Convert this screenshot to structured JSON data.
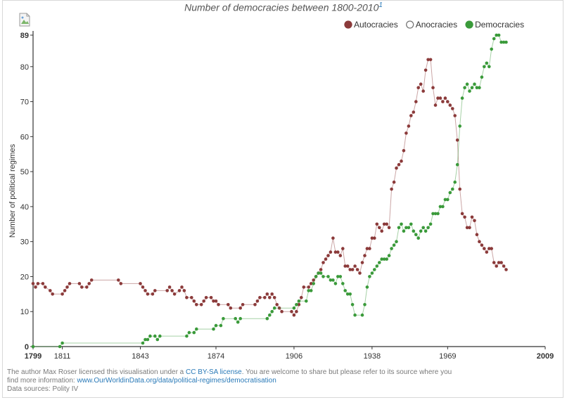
{
  "page": {
    "title": "Number of democracies between 1800-2010",
    "title_footnote": "1",
    "footer": {
      "line1_prefix": "The author Max Roser licensed this visualisation under a ",
      "license_link": "CC BY-SA license",
      "line1_suffix": ". You are welcome to share but please refer to its source where you",
      "line2_prefix": "find more information:  ",
      "source_link": "www.OurWorldinData.org/data/political-regimes/democratisation",
      "line3": "Data sources: Polity IV"
    }
  },
  "chart_data": {
    "type": "line",
    "ylabel": "Number of political regimes",
    "xlabel": "",
    "xlim": [
      1799,
      2009
    ],
    "ylim": [
      0,
      89
    ],
    "x_ticks": [
      1799,
      1811,
      1843,
      1874,
      1906,
      1938,
      1969,
      2009
    ],
    "y_ticks": [
      0,
      10,
      20,
      30,
      40,
      50,
      60,
      70,
      80,
      89
    ],
    "legend_position": "top-right",
    "grid": false,
    "colors": {
      "Autocracies": "#8b3a3a",
      "Anocracies": "#ffffff",
      "Democracies": "#3a9a3a"
    },
    "series": [
      {
        "name": "Autocracies",
        "points": [
          [
            1799,
            18
          ],
          [
            1800,
            17
          ],
          [
            1801,
            18
          ],
          [
            1803,
            18
          ],
          [
            1804,
            17
          ],
          [
            1806,
            16
          ],
          [
            1807,
            15
          ],
          [
            1811,
            15
          ],
          [
            1812,
            16
          ],
          [
            1813,
            17
          ],
          [
            1814,
            18
          ],
          [
            1818,
            18
          ],
          [
            1819,
            17
          ],
          [
            1821,
            17
          ],
          [
            1822,
            18
          ],
          [
            1823,
            19
          ],
          [
            1834,
            19
          ],
          [
            1835,
            18
          ],
          [
            1843,
            18
          ],
          [
            1844,
            17
          ],
          [
            1845,
            16
          ],
          [
            1846,
            15
          ],
          [
            1848,
            15
          ],
          [
            1849,
            16
          ],
          [
            1854,
            16
          ],
          [
            1855,
            17
          ],
          [
            1856,
            16
          ],
          [
            1857,
            15
          ],
          [
            1859,
            16
          ],
          [
            1860,
            17
          ],
          [
            1861,
            16
          ],
          [
            1862,
            14
          ],
          [
            1864,
            14
          ],
          [
            1865,
            13
          ],
          [
            1866,
            12
          ],
          [
            1868,
            12
          ],
          [
            1869,
            13
          ],
          [
            1870,
            14
          ],
          [
            1872,
            14
          ],
          [
            1873,
            13
          ],
          [
            1874,
            13
          ],
          [
            1875,
            12
          ],
          [
            1879,
            12
          ],
          [
            1880,
            11
          ],
          [
            1884,
            11
          ],
          [
            1885,
            12
          ],
          [
            1890,
            12
          ],
          [
            1891,
            13
          ],
          [
            1892,
            14
          ],
          [
            1894,
            14
          ],
          [
            1895,
            15
          ],
          [
            1896,
            14
          ],
          [
            1897,
            15
          ],
          [
            1898,
            14
          ],
          [
            1899,
            12
          ],
          [
            1900,
            11
          ],
          [
            1901,
            10
          ],
          [
            1905,
            10
          ],
          [
            1906,
            9
          ],
          [
            1907,
            10
          ],
          [
            1908,
            12
          ],
          [
            1909,
            14
          ],
          [
            1910,
            17
          ],
          [
            1912,
            17
          ],
          [
            1913,
            18
          ],
          [
            1914,
            19
          ],
          [
            1915,
            20
          ],
          [
            1916,
            21
          ],
          [
            1917,
            22
          ],
          [
            1918,
            24
          ],
          [
            1919,
            25
          ],
          [
            1920,
            26
          ],
          [
            1921,
            27
          ],
          [
            1922,
            31
          ],
          [
            1923,
            27
          ],
          [
            1924,
            27
          ],
          [
            1925,
            26
          ],
          [
            1926,
            28
          ],
          [
            1927,
            23
          ],
          [
            1928,
            23
          ],
          [
            1929,
            22
          ],
          [
            1930,
            22
          ],
          [
            1931,
            23
          ],
          [
            1932,
            22
          ],
          [
            1933,
            21
          ],
          [
            1934,
            24
          ],
          [
            1935,
            26
          ],
          [
            1936,
            28
          ],
          [
            1937,
            28
          ],
          [
            1938,
            31
          ],
          [
            1939,
            31
          ],
          [
            1940,
            35
          ],
          [
            1941,
            34
          ],
          [
            1942,
            33
          ],
          [
            1943,
            35
          ],
          [
            1944,
            35
          ],
          [
            1945,
            34
          ],
          [
            1946,
            45
          ],
          [
            1947,
            47
          ],
          [
            1948,
            51
          ],
          [
            1949,
            52
          ],
          [
            1950,
            53
          ],
          [
            1951,
            56
          ],
          [
            1952,
            61
          ],
          [
            1953,
            63
          ],
          [
            1954,
            66
          ],
          [
            1955,
            67
          ],
          [
            1956,
            70
          ],
          [
            1957,
            74
          ],
          [
            1958,
            75
          ],
          [
            1959,
            73
          ],
          [
            1960,
            79
          ],
          [
            1961,
            82
          ],
          [
            1962,
            82
          ],
          [
            1963,
            74
          ],
          [
            1964,
            69
          ],
          [
            1965,
            71
          ],
          [
            1966,
            71
          ],
          [
            1967,
            70
          ],
          [
            1968,
            71
          ],
          [
            1969,
            70
          ],
          [
            1970,
            69
          ],
          [
            1971,
            68
          ],
          [
            1972,
            66
          ],
          [
            1973,
            59
          ],
          [
            1974,
            45
          ],
          [
            1975,
            38
          ],
          [
            1976,
            37
          ],
          [
            1977,
            34
          ],
          [
            1978,
            34
          ],
          [
            1979,
            37
          ],
          [
            1980,
            36
          ],
          [
            1981,
            32
          ],
          [
            1982,
            30
          ],
          [
            1983,
            29
          ],
          [
            1984,
            28
          ],
          [
            1985,
            27
          ],
          [
            1986,
            28
          ],
          [
            1987,
            28
          ],
          [
            1988,
            24
          ],
          [
            1989,
            23
          ],
          [
            1990,
            24
          ],
          [
            1991,
            24
          ],
          [
            1992,
            23
          ],
          [
            1993,
            22
          ]
        ]
      },
      {
        "name": "Anocracies",
        "points": []
      },
      {
        "name": "Democracies",
        "points": [
          [
            1799,
            0
          ],
          [
            1810,
            0
          ],
          [
            1811,
            1
          ],
          [
            1844,
            1
          ],
          [
            1845,
            2
          ],
          [
            1846,
            2
          ],
          [
            1847,
            3
          ],
          [
            1849,
            3
          ],
          [
            1850,
            2
          ],
          [
            1851,
            3
          ],
          [
            1862,
            3
          ],
          [
            1863,
            4
          ],
          [
            1865,
            4
          ],
          [
            1866,
            5
          ],
          [
            1873,
            5
          ],
          [
            1874,
            6
          ],
          [
            1876,
            6
          ],
          [
            1877,
            8
          ],
          [
            1882,
            8
          ],
          [
            1883,
            7
          ],
          [
            1884,
            8
          ],
          [
            1895,
            8
          ],
          [
            1896,
            9
          ],
          [
            1897,
            10
          ],
          [
            1898,
            11
          ],
          [
            1906,
            11
          ],
          [
            1907,
            12
          ],
          [
            1908,
            13
          ],
          [
            1911,
            13
          ],
          [
            1912,
            16
          ],
          [
            1913,
            16
          ],
          [
            1914,
            18
          ],
          [
            1915,
            20
          ],
          [
            1916,
            21
          ],
          [
            1917,
            21
          ],
          [
            1918,
            20
          ],
          [
            1920,
            20
          ],
          [
            1921,
            19
          ],
          [
            1922,
            19
          ],
          [
            1923,
            18
          ],
          [
            1924,
            20
          ],
          [
            1925,
            20
          ],
          [
            1926,
            18
          ],
          [
            1927,
            16
          ],
          [
            1928,
            15
          ],
          [
            1929,
            15
          ],
          [
            1930,
            12
          ],
          [
            1931,
            9
          ],
          [
            1934,
            9
          ],
          [
            1935,
            12
          ],
          [
            1936,
            17
          ],
          [
            1937,
            20
          ],
          [
            1938,
            21
          ],
          [
            1939,
            22
          ],
          [
            1940,
            23
          ],
          [
            1941,
            24
          ],
          [
            1942,
            25
          ],
          [
            1943,
            25
          ],
          [
            1944,
            25
          ],
          [
            1945,
            26
          ],
          [
            1946,
            28
          ],
          [
            1947,
            29
          ],
          [
            1948,
            30
          ],
          [
            1949,
            34
          ],
          [
            1950,
            35
          ],
          [
            1951,
            33
          ],
          [
            1952,
            34
          ],
          [
            1953,
            34
          ],
          [
            1954,
            35
          ],
          [
            1955,
            33
          ],
          [
            1956,
            32
          ],
          [
            1957,
            31
          ],
          [
            1958,
            33
          ],
          [
            1959,
            34
          ],
          [
            1960,
            33
          ],
          [
            1961,
            34
          ],
          [
            1962,
            35
          ],
          [
            1963,
            38
          ],
          [
            1964,
            38
          ],
          [
            1965,
            38
          ],
          [
            1966,
            40
          ],
          [
            1967,
            40
          ],
          [
            1968,
            42
          ],
          [
            1969,
            42
          ],
          [
            1970,
            44
          ],
          [
            1971,
            45
          ],
          [
            1972,
            47
          ],
          [
            1973,
            52
          ],
          [
            1974,
            63
          ],
          [
            1975,
            71
          ],
          [
            1976,
            74
          ],
          [
            1977,
            75
          ],
          [
            1978,
            73
          ],
          [
            1979,
            74
          ],
          [
            1980,
            75
          ],
          [
            1981,
            74
          ],
          [
            1982,
            74
          ],
          [
            1983,
            77
          ],
          [
            1984,
            80
          ],
          [
            1985,
            81
          ],
          [
            1986,
            80
          ],
          [
            1987,
            85
          ],
          [
            1988,
            88
          ],
          [
            1989,
            89
          ],
          [
            1990,
            89
          ],
          [
            1991,
            87
          ],
          [
            1992,
            87
          ],
          [
            1993,
            87
          ]
        ]
      }
    ]
  }
}
